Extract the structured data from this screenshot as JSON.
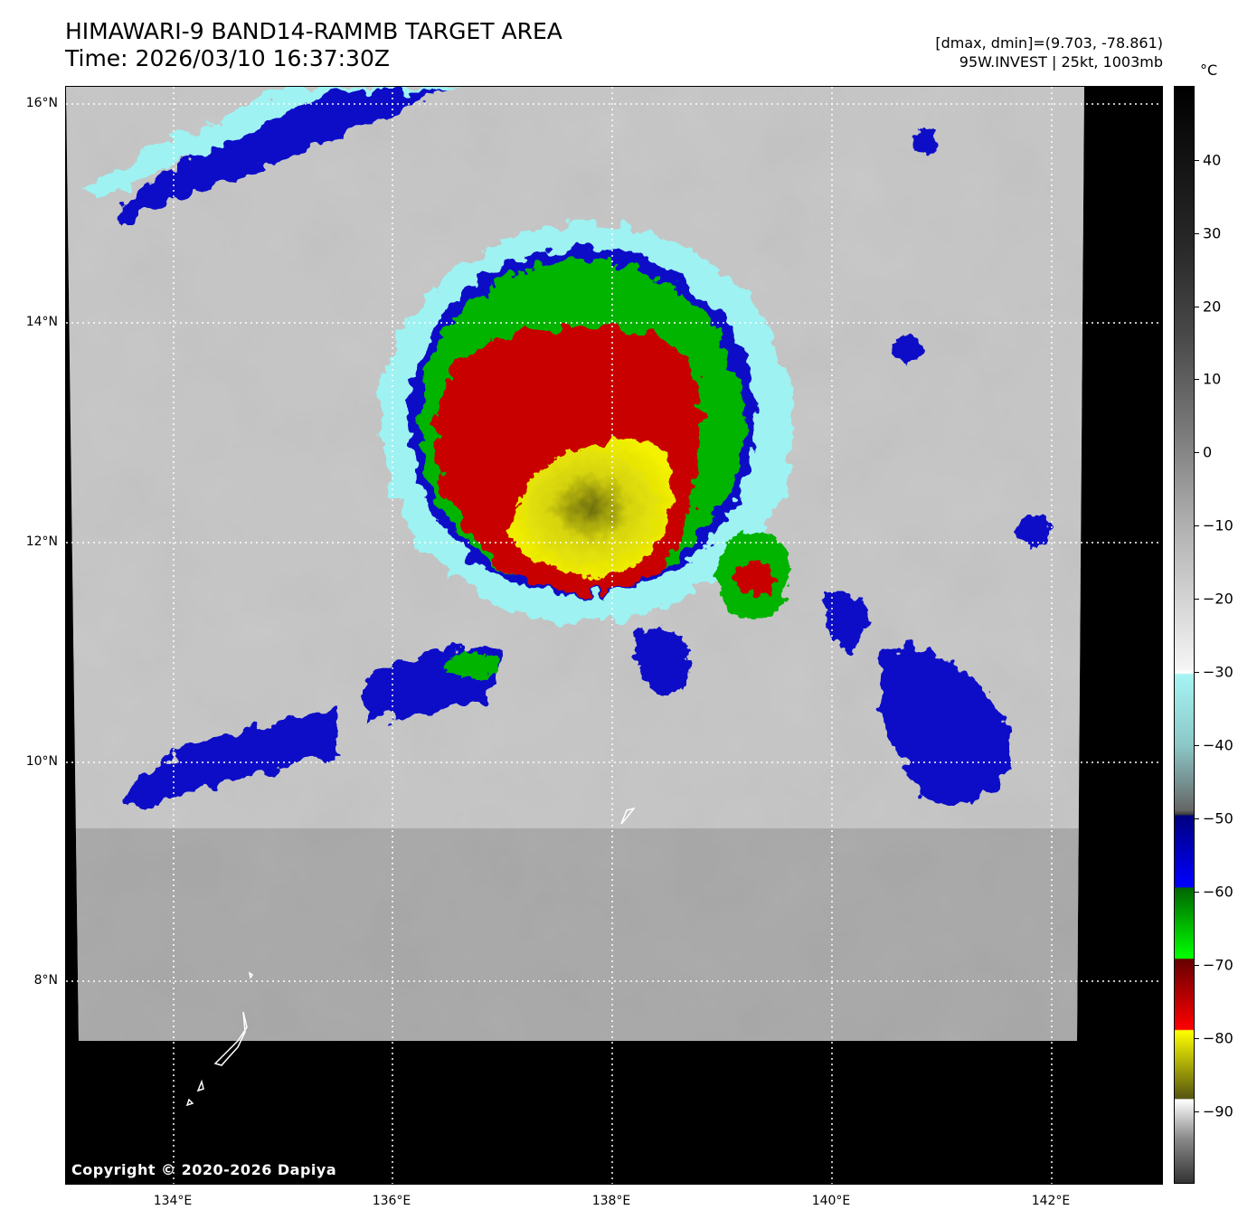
{
  "title": {
    "line1": "HIMAWARI-9 BAND14-RAMMB TARGET AREA",
    "line2": "Time: 2026/03/10 16:37:30Z"
  },
  "meta": {
    "range": "[dmax, dmin]=(9.703, -78.861)",
    "storm": "95W.INVEST | 25kt, 1003mb"
  },
  "copyright": "Copyright © 2020-2026 Dapiya",
  "axes": {
    "lat_labels": [
      "16°N",
      "14°N",
      "12°N",
      "10°N",
      "8°N"
    ],
    "lon_labels": [
      "134°E",
      "136°E",
      "138°E",
      "140°E",
      "142°E"
    ]
  },
  "colorbar": {
    "unit": "°C",
    "ticks": [
      "40",
      "30",
      "20",
      "10",
      "0",
      "−10",
      "−20",
      "−30",
      "−40",
      "−50",
      "−60",
      "−70",
      "−80",
      "−90"
    ]
  },
  "colors": {
    "blue": "#1010c8",
    "green": "#00b400",
    "red": "#c80000",
    "yellow": "#f0f000",
    "cyan": "#9ef2f2"
  }
}
